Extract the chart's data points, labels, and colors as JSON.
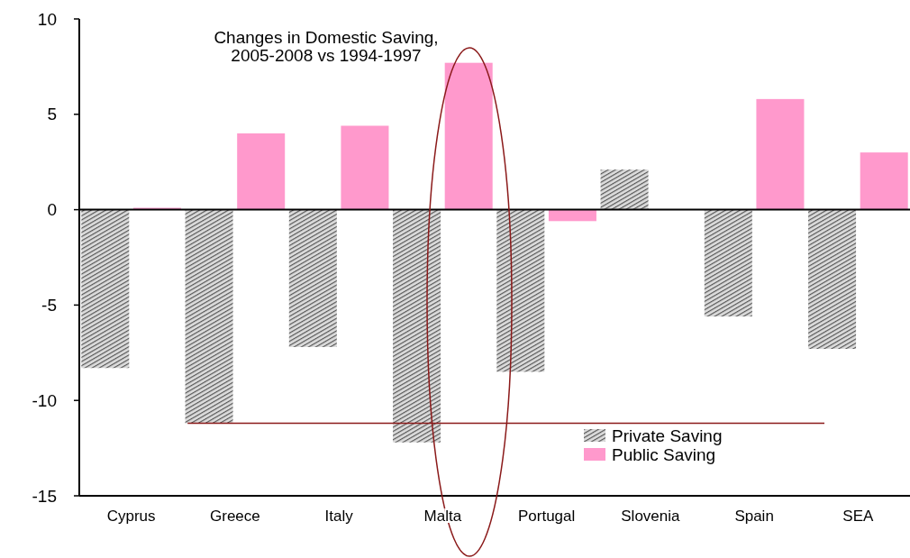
{
  "chart_data": {
    "type": "bar",
    "title": "Changes in Domestic Saving,\n2005-2008 vs 1994-1997",
    "categories": [
      "Cyprus",
      "Greece",
      "Italy",
      "Malta",
      "Portugal",
      "Slovenia",
      "Spain",
      "SEA"
    ],
    "series": [
      {
        "name": "Private Saving",
        "color": "#555555",
        "values": [
          -8.3,
          -11.2,
          -7.2,
          -12.2,
          -8.5,
          2.1,
          -5.6,
          -7.3
        ]
      },
      {
        "name": "Public Saving",
        "color": "#ff99cc",
        "values": [
          0.1,
          4.0,
          4.4,
          7.7,
          -0.6,
          null,
          5.8,
          3.0
        ]
      }
    ],
    "ylim": [
      -15,
      10
    ],
    "yticks": [
      -15,
      -10,
      -5,
      0,
      5,
      10
    ],
    "legend": "bottom right",
    "ref_lines": [
      {
        "axis": "y",
        "value": -11.2,
        "color": "#8b1a1a"
      }
    ]
  }
}
